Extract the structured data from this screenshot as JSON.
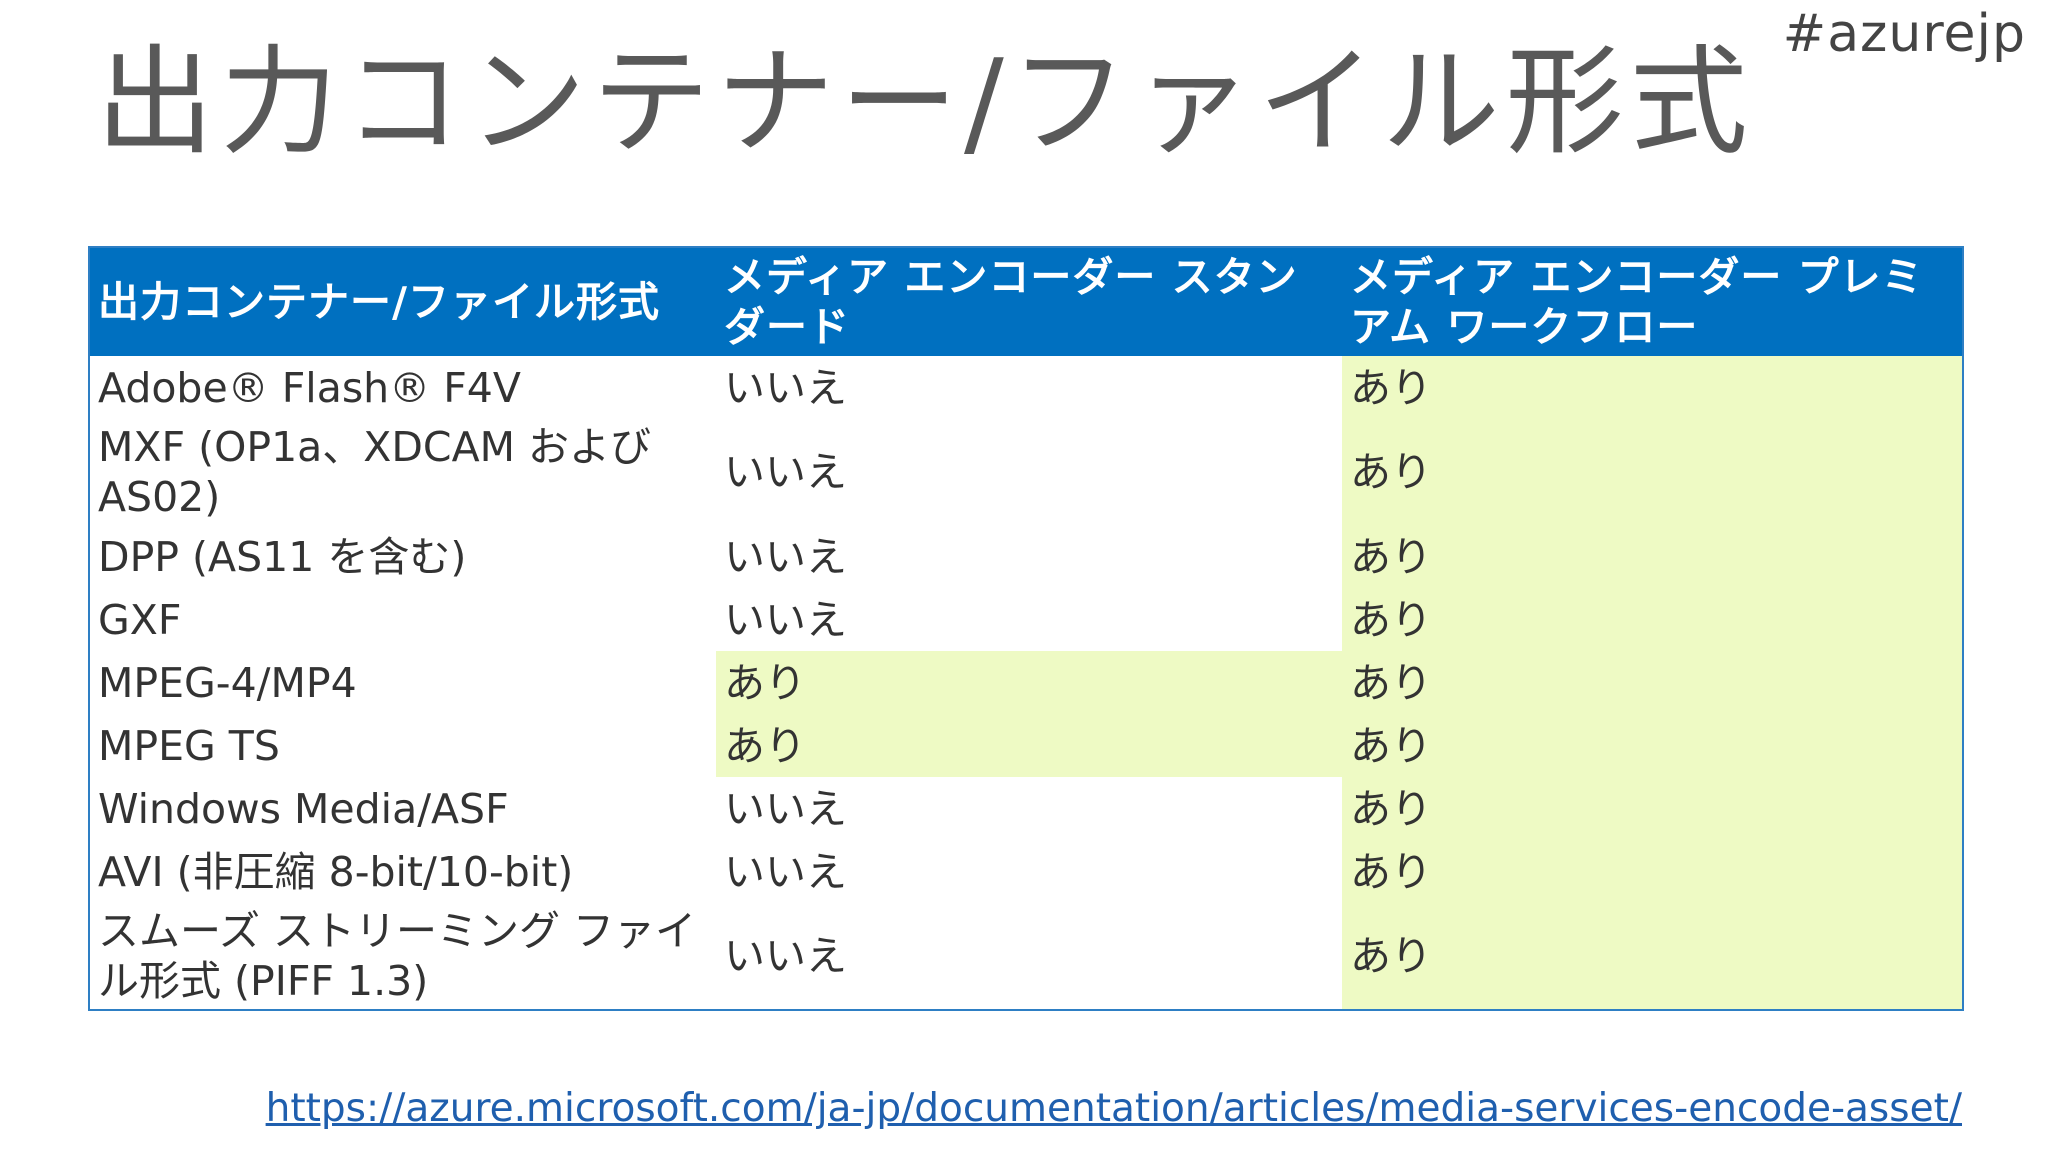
{
  "hashtag": "#azurejp",
  "title": "出力コンテナー/ファイル形式",
  "table": {
    "headers": [
      "出力コンテナー/ファイル形式",
      "メディア エンコーダー スタンダード",
      "メディア エンコーダー プレミアム ワークフロー"
    ],
    "rows": [
      {
        "format": "Adobe® Flash® F4V",
        "standard": "いいえ",
        "premium": "あり"
      },
      {
        "format": "MXF (OP1a、XDCAM および AS02)",
        "standard": "いいえ",
        "premium": "あり"
      },
      {
        "format": "DPP (AS11 を含む)",
        "standard": "いいえ",
        "premium": "あり"
      },
      {
        "format": "GXF",
        "standard": "いいえ",
        "premium": "あり"
      },
      {
        "format": "MPEG-4/MP4",
        "standard": "あり",
        "premium": "あり"
      },
      {
        "format": "MPEG TS",
        "standard": "あり",
        "premium": "あり"
      },
      {
        "format": "Windows Media/ASF",
        "standard": "いいえ",
        "premium": "あり"
      },
      {
        "format": "AVI (非圧縮 8-bit/10-bit)",
        "standard": "いいえ",
        "premium": "あり"
      },
      {
        "format": "スムーズ ストリーミング ファイル形式 (PIFF 1.3)",
        "standard": "いいえ",
        "premium": "あり"
      }
    ]
  },
  "colors": {
    "header_bg": "#0070c0",
    "yes_bg": "#eefac4",
    "link": "#1f5fae"
  },
  "footer": {
    "url": "https://azure.microsoft.com/ja-jp/documentation/articles/media-services-encode-asset/"
  }
}
